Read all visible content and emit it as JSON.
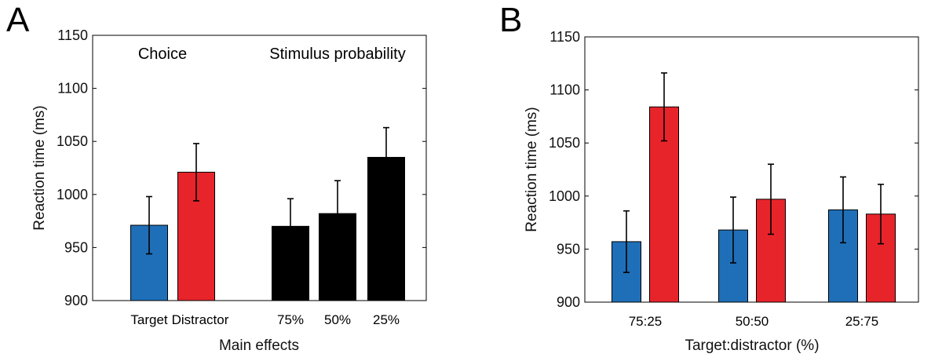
{
  "chart_data": [
    {
      "type": "bar",
      "panel_label": "A",
      "xlabel": "Main effects",
      "ylabel": "Reaction time (ms)",
      "ylim": [
        900,
        1150
      ],
      "yticks": [
        "900",
        "950",
        "1000",
        "1050",
        "1100",
        "1150"
      ],
      "group_labels": [
        "Choice",
        "Stimulus probability"
      ],
      "categories": [
        "Target",
        "Distractor",
        "75%",
        "50%",
        "25%"
      ],
      "values": [
        971,
        1021,
        970,
        982,
        1035
      ],
      "errors": [
        27,
        27,
        26,
        31,
        28
      ],
      "colors": [
        "#1f6fb8",
        "#e8242b",
        "#000000",
        "#000000",
        "#000000"
      ]
    },
    {
      "type": "bar",
      "panel_label": "B",
      "xlabel": "Target:distractor (%)",
      "ylabel": "Reaction time (ms)",
      "ylim": [
        900,
        1150
      ],
      "yticks": [
        "900",
        "950",
        "1000",
        "1050",
        "1100",
        "1150"
      ],
      "categories": [
        "75:25",
        "50:50",
        "25:75"
      ],
      "series": [
        {
          "name": "Target",
          "color": "#1f6fb8",
          "values": [
            957,
            968,
            987
          ],
          "errors": [
            29,
            31,
            31
          ]
        },
        {
          "name": "Distractor",
          "color": "#e8242b",
          "values": [
            1084,
            997,
            983
          ],
          "errors": [
            32,
            33,
            28
          ]
        }
      ]
    }
  ]
}
